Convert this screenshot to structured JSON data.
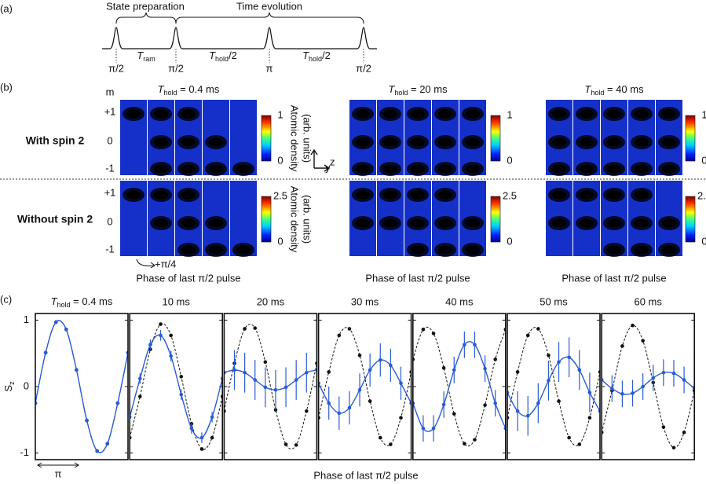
{
  "panel_a": {
    "label": "(a)",
    "brace_left": "State preparation",
    "brace_right": "Time evolution",
    "pulses": [
      "π/2",
      "π/2",
      "π",
      "π/2"
    ],
    "intervals": [
      {
        "symbol": "T",
        "sub": "ram"
      },
      {
        "symbol": "T",
        "sub": "hold",
        "suffix": "/2"
      },
      {
        "symbol": "T",
        "sub": "hold",
        "suffix": "/2"
      }
    ]
  },
  "panel_b": {
    "label": "(b)",
    "m_label": "m",
    "m_states": [
      "+1",
      "0",
      "-1"
    ],
    "rows": [
      {
        "label": "With spin 2",
        "colorbar_ticks": [
          1,
          0
        ]
      },
      {
        "label": "Without spin 2",
        "colorbar_ticks": [
          2.5,
          0
        ]
      }
    ],
    "columns": [
      {
        "symbol": "T",
        "sub": "hold",
        "text": " = 0.4 ms"
      },
      {
        "symbol": "T",
        "sub": "hold",
        "text": " = 20 ms"
      },
      {
        "symbol": "T",
        "sub": "hold",
        "text": " = 40 ms"
      }
    ],
    "colorbar_label": [
      "Atomic density",
      "(arb. units)"
    ],
    "axes": [
      "z",
      "y"
    ],
    "step": "+π/4",
    "x_label": "Phase of last π/2 pulse"
  },
  "panel_c": {
    "label": "(c)",
    "x_label": "Phase of last π/2 pulse",
    "y_label": "S",
    "y_sub": "z",
    "span": "π"
  },
  "chart_data": [
    {
      "type": "line",
      "title": {
        "symbol": "T",
        "sub": "hold",
        "text": " = 0.4 ms"
      },
      "xlim": [
        0,
        2.25
      ],
      "ylim": [
        -1.1,
        1.1
      ],
      "yticks": [
        1,
        0,
        -1
      ],
      "x": [
        0,
        0.25,
        0.5,
        0.75,
        1,
        1.25,
        1.5,
        1.75,
        2,
        2.25
      ],
      "series": [
        {
          "color": "#111111",
          "style": "dashed",
          "values": [
            -0.25,
            0.51,
            0.97,
            0.86,
            0.25,
            -0.51,
            -0.97,
            -0.86,
            -0.25,
            0.51
          ]
        },
        {
          "color": "#2a5bd7",
          "style": "solid",
          "error": 0.03,
          "values": [
            -0.25,
            0.51,
            0.97,
            0.86,
            0.25,
            -0.51,
            -0.97,
            -0.86,
            -0.25,
            0.51
          ]
        }
      ]
    },
    {
      "type": "line",
      "title": "10 ms",
      "xlim": [
        0,
        2.25
      ],
      "ylim": [
        -1.1,
        1.1
      ],
      "yticks": [
        1,
        0,
        -1
      ],
      "x": [
        0,
        0.25,
        0.5,
        0.75,
        1,
        1.25,
        1.5,
        1.75,
        2,
        2.25
      ],
      "series": [
        {
          "color": "#111111",
          "style": "dashed",
          "values": [
            -0.77,
            -0.15,
            0.56,
            0.94,
            0.77,
            0.15,
            -0.56,
            -0.94,
            -0.77,
            -0.15
          ]
        },
        {
          "color": "#2a5bd7",
          "style": "solid",
          "error": 0.08,
          "values": [
            -0.46,
            0.12,
            0.63,
            0.77,
            0.46,
            -0.12,
            -0.63,
            -0.77,
            -0.46,
            0.12
          ]
        }
      ]
    },
    {
      "type": "line",
      "title": "20 ms",
      "xlim": [
        0,
        2.25
      ],
      "ylim": [
        -1.1,
        1.1
      ],
      "yticks": [
        1,
        0,
        -1
      ],
      "x": [
        0,
        0.25,
        0.5,
        0.75,
        1,
        1.25,
        1.5,
        1.75,
        2,
        2.25
      ],
      "series": [
        {
          "color": "#111111",
          "style": "dashed",
          "values": [
            -0.37,
            0.35,
            0.87,
            0.88,
            0.37,
            -0.35,
            -0.87,
            -0.88,
            -0.37,
            0.35
          ]
        },
        {
          "color": "#2a5bd7",
          "style": "solid",
          "error": 0.3,
          "values": [
            0.21,
            0.25,
            0.21,
            0.1,
            -0.01,
            -0.05,
            -0.01,
            0.1,
            0.21,
            0.25
          ]
        }
      ]
    },
    {
      "type": "line",
      "title": "30 ms",
      "xlim": [
        0,
        2.25
      ],
      "ylim": [
        -1.1,
        1.1
      ],
      "yticks": [
        1,
        0,
        -1
      ],
      "x": [
        0,
        0.25,
        0.5,
        0.75,
        1,
        1.25,
        1.5,
        1.75,
        2,
        2.25
      ],
      "series": [
        {
          "color": "#111111",
          "style": "dashed",
          "values": [
            -0.47,
            0.22,
            0.77,
            0.87,
            0.47,
            -0.22,
            -0.77,
            -0.87,
            -0.47,
            0.22
          ]
        },
        {
          "color": "#2a5bd7",
          "style": "solid",
          "error": 0.25,
          "values": [
            0.05,
            -0.25,
            -0.4,
            -0.32,
            -0.05,
            0.25,
            0.4,
            0.32,
            0.05,
            -0.25
          ]
        }
      ]
    },
    {
      "type": "line",
      "title": "40 ms",
      "xlim": [
        0,
        2.25
      ],
      "ylim": [
        -1.1,
        1.1
      ],
      "yticks": [
        1,
        0,
        -1
      ],
      "x": [
        0,
        0.25,
        0.5,
        0.75,
        1,
        1.25,
        1.5,
        1.75,
        2,
        2.25
      ],
      "series": [
        {
          "color": "#111111",
          "style": "dashed",
          "values": [
            0.41,
            0.86,
            0.8,
            0.28,
            -0.41,
            -0.86,
            -0.8,
            -0.28,
            0.41,
            0.86
          ]
        },
        {
          "color": "#2a5bd7",
          "style": "solid",
          "error": 0.2,
          "values": [
            -0.25,
            -0.63,
            -0.63,
            -0.27,
            0.25,
            0.63,
            0.63,
            0.27,
            -0.25,
            -0.63
          ]
        }
      ]
    },
    {
      "type": "line",
      "title": "50 ms",
      "xlim": [
        0,
        2.25
      ],
      "ylim": [
        -1.1,
        1.1
      ],
      "yticks": [
        1,
        0,
        -1
      ],
      "x": [
        0,
        0.25,
        0.5,
        0.75,
        1,
        1.25,
        1.5,
        1.75,
        2,
        2.25
      ],
      "series": [
        {
          "color": "#111111",
          "style": "dashed",
          "values": [
            -0.47,
            0.22,
            0.77,
            0.87,
            0.47,
            -0.22,
            -0.77,
            -0.87,
            -0.47,
            0.22
          ]
        },
        {
          "color": "#2a5bd7",
          "style": "solid",
          "error": 0.3,
          "values": [
            -0.09,
            -0.37,
            -0.44,
            -0.25,
            0.09,
            0.37,
            0.44,
            0.25,
            -0.09,
            -0.37
          ]
        }
      ]
    },
    {
      "type": "line",
      "title": "60 ms",
      "xlim": [
        0,
        2.25
      ],
      "ylim": [
        -1.1,
        1.1
      ],
      "yticks": [
        1,
        0,
        -1
      ],
      "x": [
        0,
        0.25,
        0.5,
        0.75,
        1,
        1.25,
        1.5,
        1.75,
        2,
        2.25
      ],
      "series": [
        {
          "color": "#111111",
          "style": "dashed",
          "values": [
            -0.69,
            -0.06,
            0.61,
            0.92,
            0.69,
            0.06,
            -0.61,
            -0.92,
            -0.69,
            -0.06
          ]
        },
        {
          "color": "#2a5bd7",
          "style": "solid",
          "error": 0.2,
          "values": [
            0.1,
            -0.03,
            -0.11,
            -0.1,
            0,
            0.13,
            0.21,
            0.2,
            0.1,
            -0.03
          ]
        }
      ]
    }
  ]
}
